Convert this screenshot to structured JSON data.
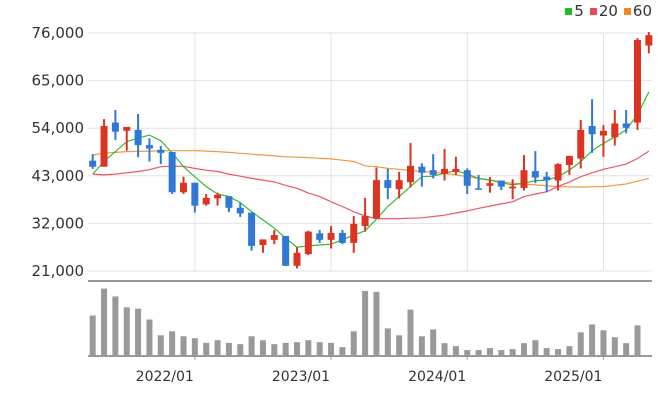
{
  "chart_data": {
    "type": "candlestick",
    "title": "",
    "legend": {
      "placement": "top-right",
      "items": [
        {
          "label": "5",
          "color": "#22bb22"
        },
        {
          "label": "20",
          "color": "#ee4455"
        },
        {
          "label": "60",
          "color": "#ee8822"
        }
      ]
    },
    "y_ticks": [
      "76,000",
      "65,000",
      "54,000",
      "43,000",
      "32,000",
      "21,000"
    ],
    "y_tick_values": [
      76000,
      65000,
      54000,
      43000,
      32000,
      21000
    ],
    "ylim": [
      21000,
      76000
    ],
    "x_ticks": [
      "2022/01",
      "2023/01",
      "2024/01",
      "2025/01"
    ],
    "x_tick_index": [
      9,
      21,
      33,
      45
    ],
    "grid": true,
    "colors": {
      "up": "#dd3322",
      "down": "#2f78d6",
      "volume": "#999999",
      "grid": "#e3e3e3"
    },
    "candles": [
      [
        46500,
        48000,
        44600,
        45100
      ],
      [
        45100,
        56100,
        45100,
        54500
      ],
      [
        55300,
        58200,
        51300,
        53200
      ],
      [
        53400,
        54300,
        48800,
        54300
      ],
      [
        53600,
        57300,
        47300,
        50100
      ],
      [
        50100,
        51700,
        46300,
        49300
      ],
      [
        49000,
        49900,
        45700,
        48300
      ],
      [
        48500,
        48500,
        38800,
        39200
      ],
      [
        39200,
        42800,
        38800,
        41400
      ],
      [
        41400,
        41400,
        34500,
        36100
      ],
      [
        36400,
        38800,
        36100,
        37900
      ],
      [
        37800,
        39100,
        36100,
        38600
      ],
      [
        38300,
        38300,
        34600,
        35600
      ],
      [
        35600,
        36800,
        33500,
        34300
      ],
      [
        34500,
        34500,
        25700,
        26800
      ],
      [
        27000,
        28300,
        25200,
        28300
      ],
      [
        28200,
        30500,
        27200,
        29300
      ],
      [
        29100,
        29100,
        22200,
        22200
      ],
      [
        22200,
        26500,
        21600,
        25200
      ],
      [
        24900,
        30300,
        24700,
        30100
      ],
      [
        29700,
        30500,
        27500,
        28200
      ],
      [
        28200,
        31400,
        26200,
        29800
      ],
      [
        29800,
        30500,
        27200,
        27500
      ],
      [
        27500,
        33700,
        25200,
        31900
      ],
      [
        31400,
        37900,
        30100,
        33700
      ],
      [
        33100,
        44900,
        33100,
        42000
      ],
      [
        42000,
        44600,
        37600,
        40200
      ],
      [
        39900,
        43900,
        37800,
        42000
      ],
      [
        41500,
        50600,
        40300,
        45300
      ],
      [
        45100,
        45900,
        40500,
        43700
      ],
      [
        44300,
        48000,
        42400,
        43200
      ],
      [
        43400,
        49200,
        41900,
        44600
      ],
      [
        43900,
        47400,
        43200,
        44600
      ],
      [
        44300,
        44700,
        38800,
        40700
      ],
      [
        40100,
        43200,
        39900,
        39900
      ],
      [
        40700,
        42700,
        39100,
        41300
      ],
      [
        41900,
        41900,
        39700,
        40500
      ],
      [
        40100,
        42200,
        37600,
        40500
      ],
      [
        40200,
        47800,
        39600,
        44300
      ],
      [
        44100,
        48700,
        41300,
        42600
      ],
      [
        42800,
        43900,
        39200,
        42000
      ],
      [
        41900,
        45900,
        39600,
        45700
      ],
      [
        45500,
        47600,
        43200,
        47600
      ],
      [
        47000,
        55900,
        44700,
        53600
      ],
      [
        54500,
        60700,
        48300,
        52600
      ],
      [
        52300,
        54700,
        47400,
        53400
      ],
      [
        51900,
        58200,
        50000,
        55100
      ],
      [
        55100,
        58200,
        52800,
        54100
      ],
      [
        55300,
        74800,
        53600,
        74400
      ],
      [
        73100,
        76200,
        71300,
        75500
      ]
    ],
    "candle_format": [
      "open",
      "high",
      "low",
      "close"
    ],
    "ma5": [
      43400,
      46300,
      48600,
      50900,
      51700,
      52400,
      51100,
      48300,
      45100,
      42800,
      40500,
      38800,
      38200,
      36800,
      34700,
      32800,
      30900,
      28600,
      26500,
      26800,
      27000,
      27200,
      28200,
      29300,
      30300,
      33000,
      35900,
      38200,
      40500,
      42800,
      42900,
      43600,
      44200,
      43400,
      42400,
      42000,
      41400,
      40900,
      41300,
      41900,
      42000,
      42800,
      44300,
      46300,
      48800,
      50500,
      52000,
      53600,
      57100,
      62400
    ],
    "ma20": [
      43400,
      43200,
      43400,
      43700,
      44000,
      44400,
      45100,
      45200,
      45200,
      44700,
      44300,
      44000,
      43400,
      42900,
      42400,
      42000,
      41600,
      40800,
      40100,
      39000,
      38200,
      37000,
      35900,
      34700,
      33700,
      33100,
      33100,
      33100,
      33200,
      33300,
      33600,
      33900,
      34400,
      34900,
      35500,
      36000,
      36500,
      37000,
      38200,
      38800,
      39300,
      40500,
      41600,
      42800,
      43700,
      44500,
      45100,
      45700,
      47000,
      48700
    ],
    "ma60": [
      47800,
      48200,
      48400,
      48600,
      48650,
      48700,
      48750,
      48800,
      48800,
      48800,
      48700,
      48600,
      48400,
      48200,
      48000,
      47800,
      47600,
      47400,
      47300,
      47200,
      47050,
      46900,
      46600,
      46300,
      45300,
      45100,
      44700,
      44500,
      44250,
      44000,
      43800,
      43600,
      43200,
      42800,
      42400,
      42000,
      41650,
      41300,
      41100,
      40900,
      40700,
      40500,
      40450,
      40400,
      40450,
      40500,
      40800,
      41100,
      41750,
      42400
    ],
    "volume": [
      123,
      205,
      181,
      148,
      144,
      111,
      63,
      75,
      60,
      54,
      40,
      48,
      40,
      36,
      60,
      48,
      36,
      40,
      42,
      48,
      42,
      40,
      27,
      75,
      198,
      195,
      84,
      63,
      141,
      60,
      81,
      39,
      30,
      18,
      18,
      24,
      18,
      21,
      39,
      48,
      24,
      21,
      30,
      72,
      96,
      78,
      57,
      39,
      93,
      3
    ]
  }
}
